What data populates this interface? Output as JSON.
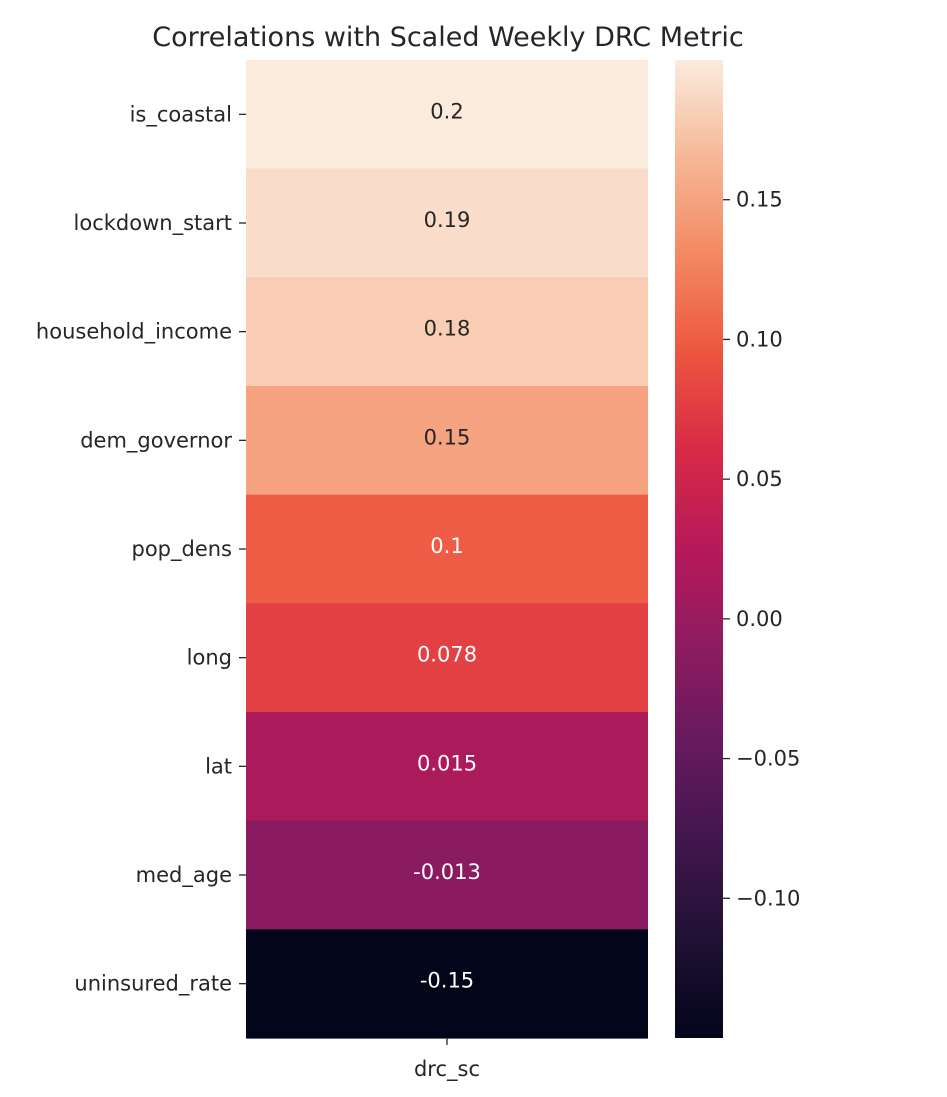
{
  "chart_data": {
    "type": "heatmap",
    "title": "Correlations with Scaled Weekly DRC Metric",
    "columns": [
      "drc_sc"
    ],
    "rows": [
      "is_coastal",
      "lockdown_start",
      "household_income",
      "dem_governor",
      "pop_dens",
      "long",
      "lat",
      "med_age",
      "uninsured_rate"
    ],
    "values": [
      0.2,
      0.19,
      0.18,
      0.15,
      0.1,
      0.078,
      0.015,
      -0.013,
      -0.15
    ],
    "cell_labels": [
      "0.2",
      "0.19",
      "0.18",
      "0.15",
      "0.1",
      "0.078",
      "0.015",
      "-0.013",
      "-0.15"
    ],
    "colormap": "rocket",
    "annotated": true,
    "colorbar": {
      "range": [
        -0.15,
        0.2
      ],
      "ticks": [
        -0.1,
        -0.05,
        0.0,
        0.05,
        0.1,
        0.15
      ],
      "tick_labels": [
        "−0.10",
        "−0.05",
        "0.00",
        "0.05",
        "0.10",
        "0.15"
      ],
      "placement": "right"
    },
    "grid": false
  }
}
